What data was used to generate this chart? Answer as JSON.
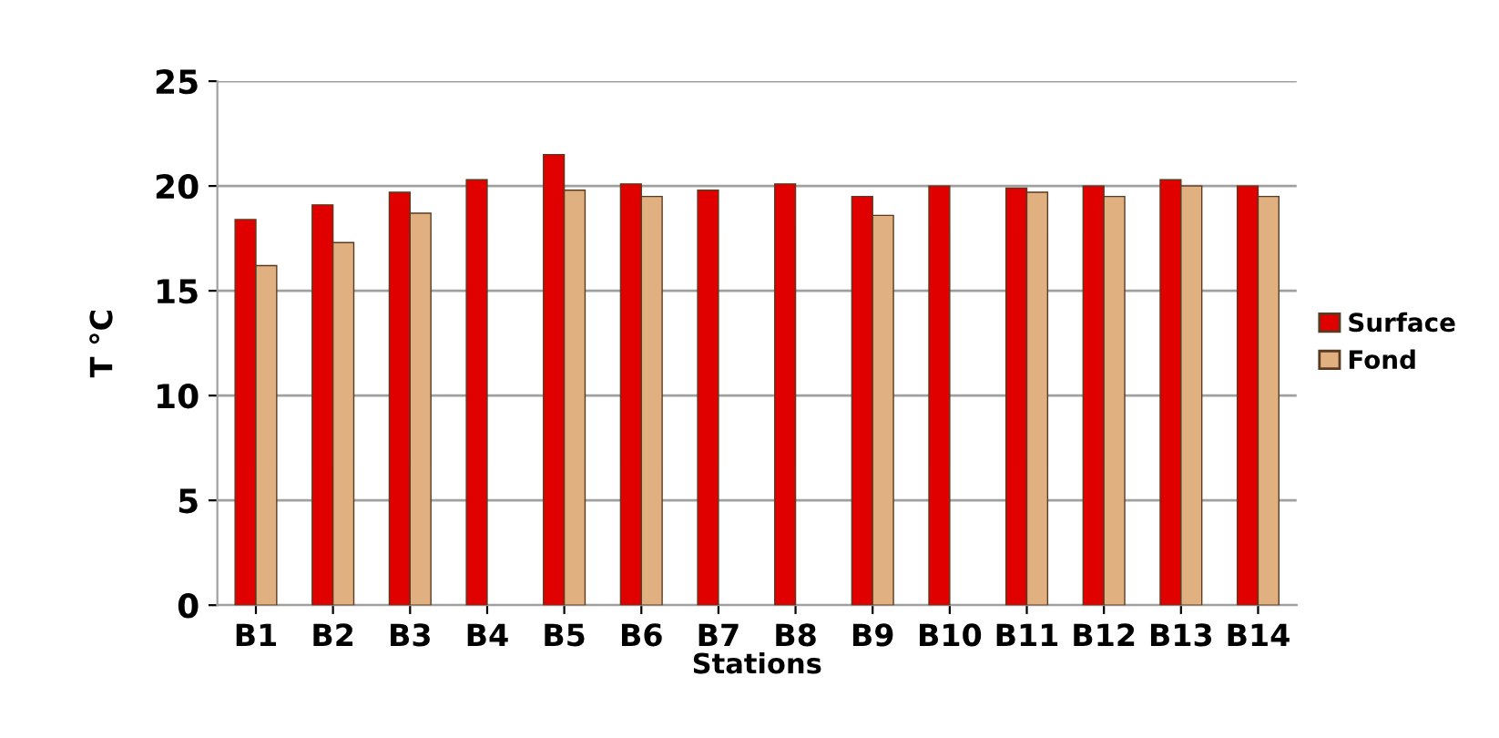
{
  "chart_data": {
    "type": "bar",
    "xlabel": "Stations",
    "ylabel": "T °C",
    "categories": [
      "B1",
      "B2",
      "B3",
      "B4",
      "B5",
      "B6",
      "B7",
      "B8",
      "B9",
      "B10",
      "B11",
      "B12",
      "B13",
      "B14"
    ],
    "series": [
      {
        "name": "Surface",
        "color": "#e00000",
        "values": [
          18.4,
          19.1,
          19.7,
          20.3,
          21.5,
          20.1,
          19.8,
          20.1,
          19.5,
          20.0,
          19.9,
          20.0,
          20.3,
          20.0
        ]
      },
      {
        "name": "Fond",
        "color": "#e0b080",
        "values": [
          16.2,
          17.3,
          18.7,
          null,
          19.8,
          19.5,
          null,
          null,
          18.6,
          null,
          19.7,
          19.5,
          20.0,
          19.5
        ]
      }
    ],
    "ylim": [
      0,
      25
    ],
    "yticks": [
      0,
      5,
      10,
      15,
      20,
      25
    ],
    "grid": "y",
    "legend": "right"
  }
}
